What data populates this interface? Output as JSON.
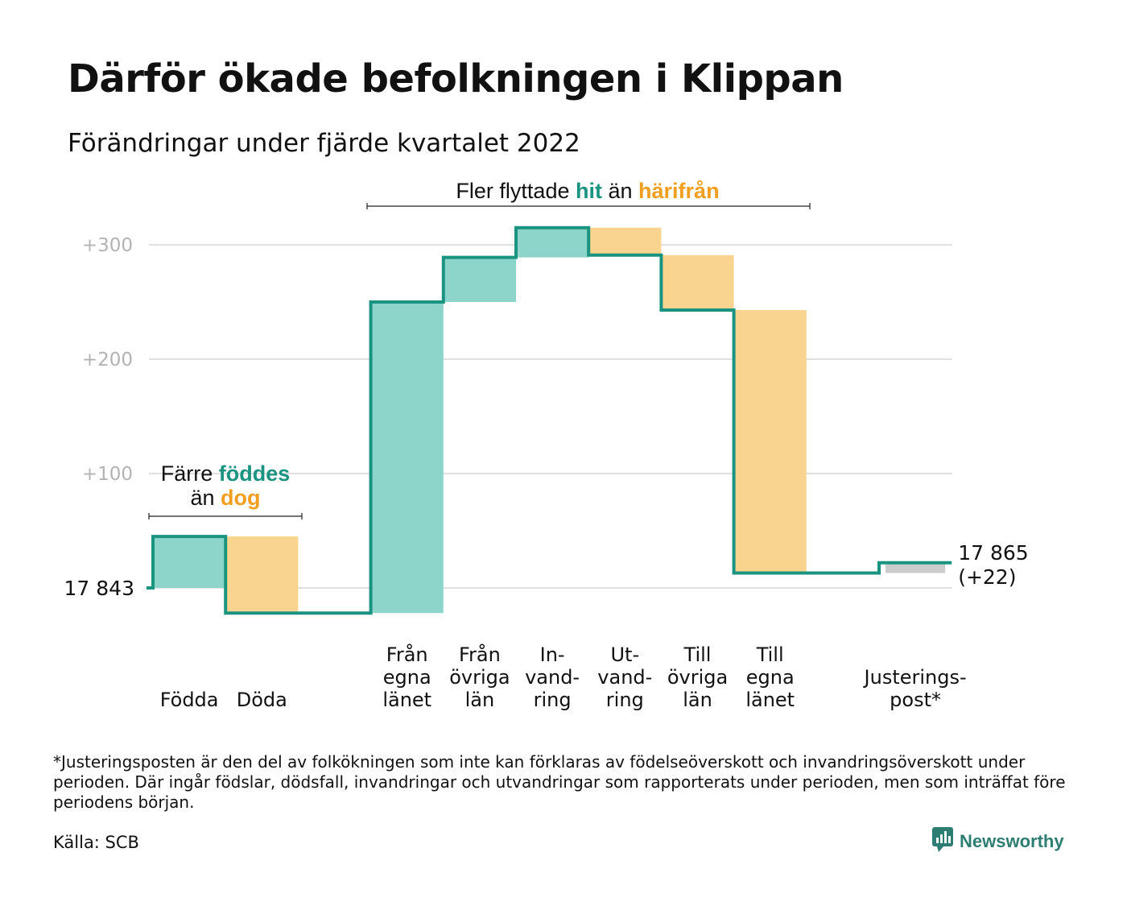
{
  "title": "Därför ökade befolkningen i Klippan",
  "subtitle": "Förändringar under fjärde kvartalet 2022",
  "colors": {
    "increase": "#8dd4ca",
    "decrease": "#f9d48f",
    "adjustment": "#cccccc",
    "line": "#1a9480",
    "accent_teal": "#1a9480",
    "accent_orange": "#f29e1f",
    "grid": "#e0e0e0"
  },
  "annotations": {
    "natural": {
      "line1_pre": "Färre ",
      "line1_hl": "föddes",
      "line2_pre": "än ",
      "line2_hl": "dog"
    },
    "migration": {
      "pre": "Fler flyttade ",
      "hl1": "hit",
      "mid": " än ",
      "hl2": "härifrån"
    }
  },
  "chart_data": {
    "type": "waterfall",
    "start_value": 17843,
    "start_label": "17 843",
    "end_label": "17 865",
    "end_change_label": "(+22)",
    "y_ticks": [
      {
        "value": 100,
        "label": "+100"
      },
      {
        "value": 200,
        "label": "+200"
      },
      {
        "value": 300,
        "label": "+300"
      }
    ],
    "ylim": [
      -30,
      316
    ],
    "grid": true,
    "steps": [
      {
        "label_lines": [
          "Födda"
        ],
        "change": 45,
        "kind": "increase"
      },
      {
        "label_lines": [
          "Döda"
        ],
        "change": -67,
        "kind": "decrease"
      },
      {
        "label_lines": [],
        "change": 0,
        "kind": "gap"
      },
      {
        "label_lines": [
          "Från",
          "egna",
          "länet"
        ],
        "change": 272,
        "kind": "increase"
      },
      {
        "label_lines": [
          "Från",
          "övriga",
          "län"
        ],
        "change": 39,
        "kind": "increase"
      },
      {
        "label_lines": [
          "In-",
          "vand-",
          "ring"
        ],
        "change": 26,
        "kind": "increase"
      },
      {
        "label_lines": [
          "Ut-",
          "vand-",
          "ring"
        ],
        "change": -24,
        "kind": "decrease"
      },
      {
        "label_lines": [
          "Till",
          "övriga",
          "län"
        ],
        "change": -48,
        "kind": "decrease"
      },
      {
        "label_lines": [
          "Till",
          "egna",
          "länet"
        ],
        "change": -230,
        "kind": "decrease"
      },
      {
        "label_lines": [],
        "change": 0,
        "kind": "gap"
      },
      {
        "label_lines": [
          "Justerings-",
          "post*"
        ],
        "change": 9,
        "kind": "adjustment"
      }
    ]
  },
  "footnote": "*Justeringsposten är den del av folkökningen som inte kan förklaras av födelseöverskott och invandringsöverskott under perioden. Där ingår födslar, dödsfall, invandringar och utvandringar som rapporterats under perioden, men som inträffat före periodens början.",
  "source": "Källa: SCB",
  "brand": {
    "name": "Newsworthy",
    "icon": "newsworthy-logo-icon"
  }
}
